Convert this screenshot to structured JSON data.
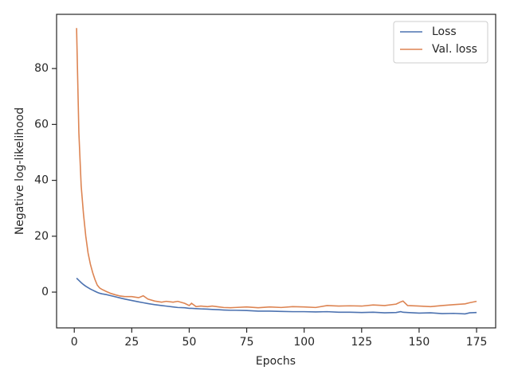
{
  "chart_data": {
    "type": "line",
    "xlabel": "Epochs",
    "ylabel": "Negative log-likelihood",
    "x": [
      1,
      2,
      3,
      4,
      5,
      6,
      7,
      8,
      9,
      10,
      11,
      12,
      14,
      16,
      18,
      20,
      22,
      25,
      28,
      30,
      32,
      35,
      38,
      40,
      43,
      45,
      48,
      50,
      51,
      53,
      55,
      58,
      60,
      63,
      65,
      68,
      70,
      75,
      80,
      85,
      90,
      95,
      100,
      105,
      110,
      115,
      120,
      125,
      130,
      135,
      140,
      142,
      143,
      145,
      150,
      155,
      160,
      165,
      170,
      172,
      175
    ],
    "series": [
      {
        "name": "Loss",
        "color": "#4c72b0",
        "values": [
          5,
          4.2,
          3.4,
          2.7,
          2.1,
          1.6,
          1.1,
          0.7,
          0.3,
          -0.1,
          -0.4,
          -0.6,
          -0.9,
          -1.3,
          -1.7,
          -2.1,
          -2.5,
          -3.0,
          -3.5,
          -3.8,
          -4.1,
          -4.5,
          -4.8,
          -5.0,
          -5.3,
          -5.5,
          -5.6,
          -5.8,
          -5.8,
          -5.9,
          -6.0,
          -6.1,
          -6.2,
          -6.3,
          -6.4,
          -6.5,
          -6.5,
          -6.6,
          -6.8,
          -6.8,
          -6.9,
          -7.0,
          -7.0,
          -7.1,
          -7.0,
          -7.2,
          -7.2,
          -7.3,
          -7.2,
          -7.4,
          -7.3,
          -7.0,
          -7.2,
          -7.3,
          -7.5,
          -7.4,
          -7.7,
          -7.6,
          -7.8,
          -7.4,
          -7.3
        ]
      },
      {
        "name": "Val. loss",
        "color": "#dd8452",
        "values": [
          94.5,
          57,
          38,
          28,
          20,
          14,
          10,
          7,
          4.5,
          2.5,
          1.5,
          1.0,
          0.2,
          -0.5,
          -1.0,
          -1.4,
          -1.6,
          -1.6,
          -2.0,
          -1.3,
          -2.5,
          -3.2,
          -3.6,
          -3.3,
          -3.6,
          -3.3,
          -4.0,
          -4.8,
          -4.0,
          -5.2,
          -5.0,
          -5.2,
          -5.0,
          -5.3,
          -5.5,
          -5.6,
          -5.5,
          -5.3,
          -5.6,
          -5.3,
          -5.5,
          -5.2,
          -5.3,
          -5.5,
          -4.8,
          -5.0,
          -4.9,
          -5.0,
          -4.6,
          -4.8,
          -4.3,
          -3.5,
          -3.2,
          -4.8,
          -5.0,
          -5.2,
          -4.8,
          -4.5,
          -4.2,
          -3.8,
          -3.3
        ]
      }
    ],
    "xlim": [
      -7.7,
      183.3
    ],
    "xticks": [
      0,
      25,
      50,
      75,
      100,
      125,
      150,
      175
    ],
    "ylim": [
      -12.8,
      99.4
    ],
    "yticks": [
      0,
      20,
      40,
      60,
      80
    ],
    "grid": false,
    "legend": "upper right"
  }
}
